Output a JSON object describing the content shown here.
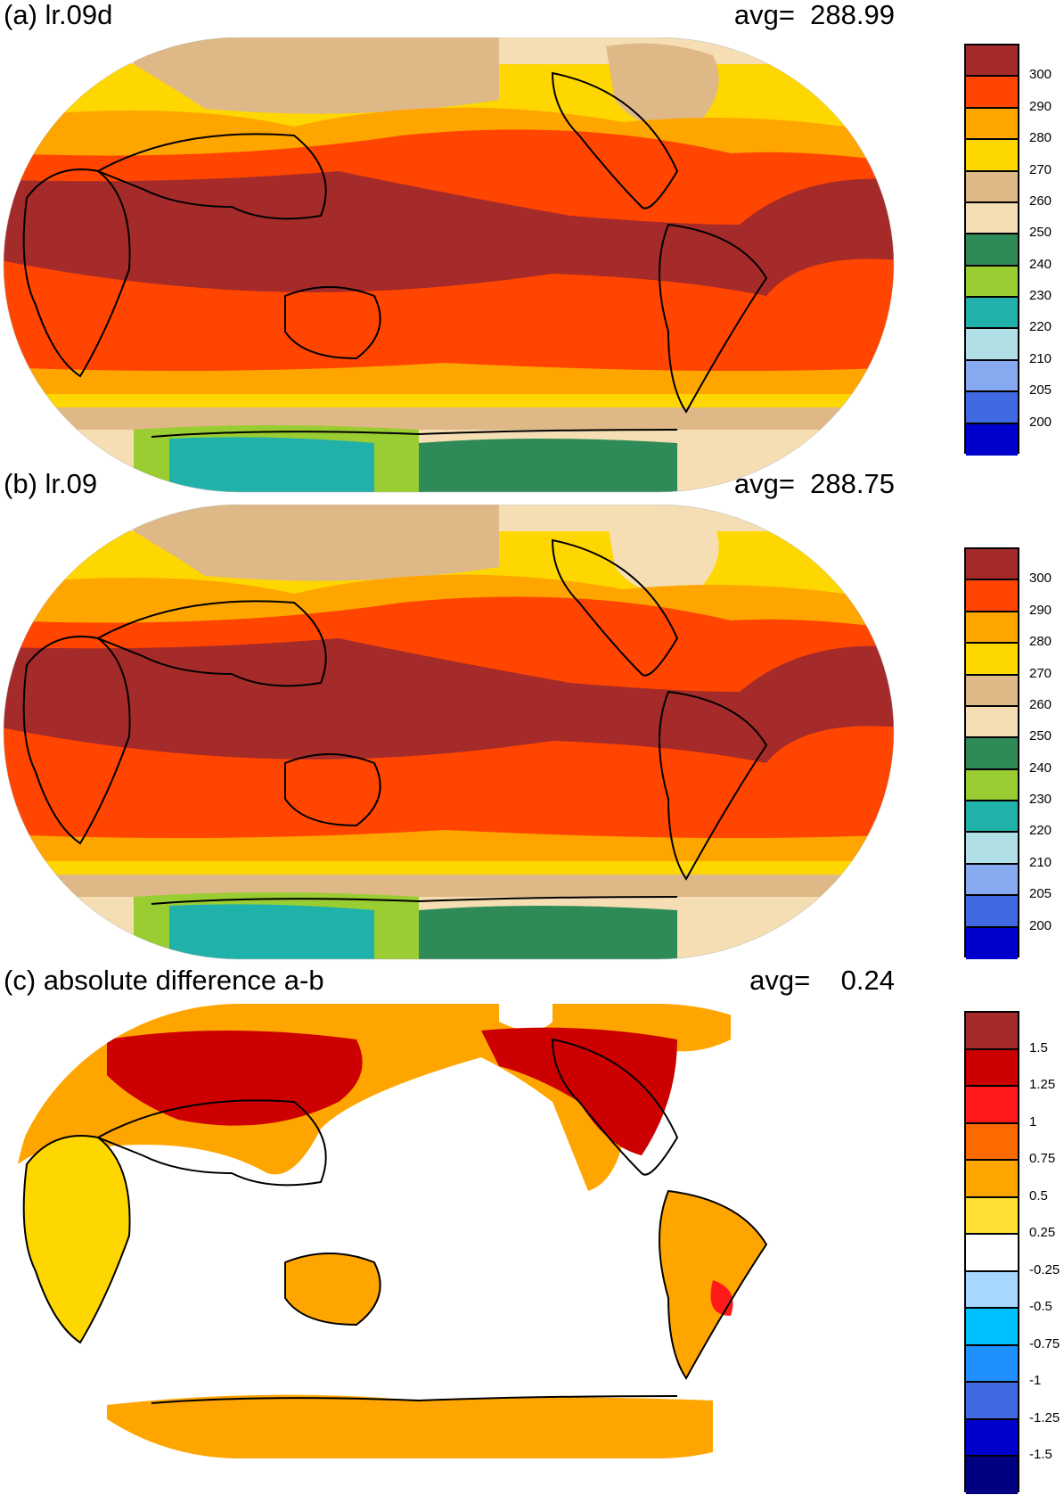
{
  "panels": [
    {
      "title": "(a) lr.09d",
      "avg_label": "avg=",
      "avg_value": "288.99",
      "colorbar": {
        "colors": [
          "#a52a2a",
          "#ff4500",
          "#ffa500",
          "#ffd700",
          "#deb887",
          "#f5deb3",
          "#2e8b57",
          "#9acd32",
          "#20b2aa",
          "#b0e0e6",
          "#87a9f0",
          "#4169e1",
          "#0000cd"
        ],
        "labels": [
          "300",
          "290",
          "280",
          "270",
          "260",
          "250",
          "240",
          "230",
          "220",
          "210",
          "205",
          "200"
        ]
      }
    },
    {
      "title": "(b) lr.09",
      "avg_label": "avg=",
      "avg_value": "288.75",
      "colorbar": {
        "colors": [
          "#a52a2a",
          "#ff4500",
          "#ffa500",
          "#ffd700",
          "#deb887",
          "#f5deb3",
          "#2e8b57",
          "#9acd32",
          "#20b2aa",
          "#b0e0e6",
          "#87a9f0",
          "#4169e1",
          "#0000cd"
        ],
        "labels": [
          "300",
          "290",
          "280",
          "270",
          "260",
          "250",
          "240",
          "230",
          "220",
          "210",
          "205",
          "200"
        ]
      }
    },
    {
      "title": "(c) absolute difference a-b",
      "avg_label": "avg=",
      "avg_value": "0.24",
      "colorbar": {
        "colors": [
          "#a52a2a",
          "#cc0000",
          "#ff1a1a",
          "#ff6a00",
          "#ffa500",
          "#ffe033",
          "#ffffff",
          "#a6d8ff",
          "#00bfff",
          "#1e90ff",
          "#4169e1",
          "#0000cd",
          "#000080"
        ],
        "labels": [
          "1.5",
          "1.25",
          "1",
          "0.75",
          "0.5",
          "0.25",
          "-0.25",
          "-0.5",
          "-0.75",
          "-1",
          "-1.25",
          "-1.5"
        ]
      }
    }
  ]
}
